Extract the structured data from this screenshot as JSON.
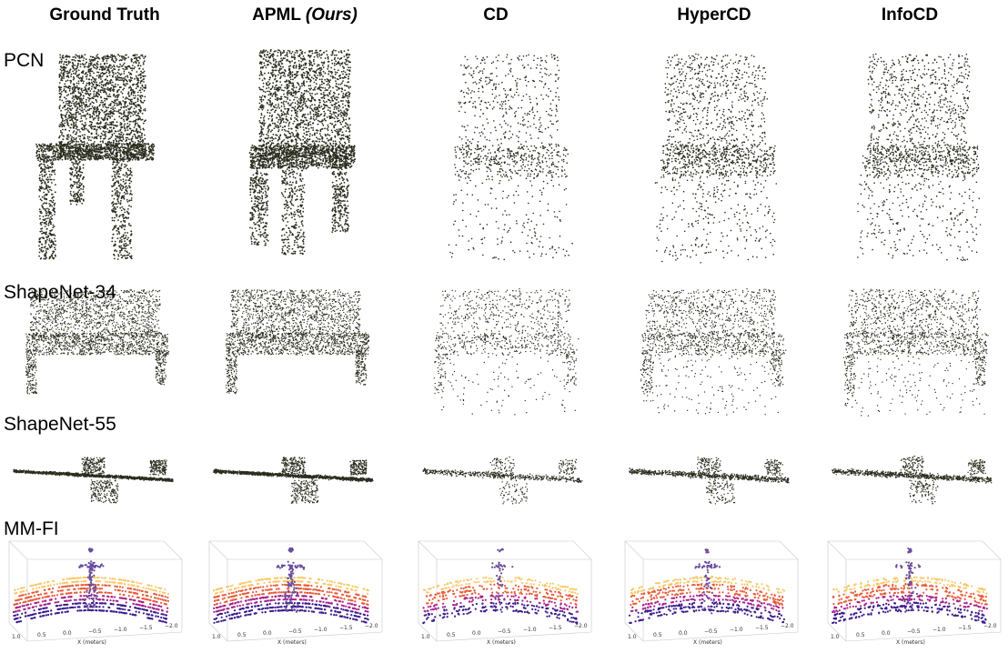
{
  "columns": [
    {
      "id": "gt",
      "label": "Ground Truth",
      "suffix": ""
    },
    {
      "id": "apml",
      "label": "APML ",
      "suffix": "(Ours)"
    },
    {
      "id": "cd",
      "label": "CD",
      "suffix": ""
    },
    {
      "id": "hypercd",
      "label": "HyperCD",
      "suffix": ""
    },
    {
      "id": "infocd",
      "label": "InfoCD",
      "suffix": ""
    }
  ],
  "rows": [
    {
      "id": "pcn",
      "label": "PCN",
      "shape": "chair"
    },
    {
      "id": "shapenet34",
      "label": "ShapeNet-34",
      "shape": "sofa"
    },
    {
      "id": "shapenet55",
      "label": "ShapeNet-55",
      "shape": "airplane"
    },
    {
      "id": "mmfi",
      "label": "MM-FI",
      "shape": "human-scene"
    }
  ],
  "mmfi_axis": {
    "x_ticks": [
      "1.0",
      "0.5",
      "0.0",
      "−0.5",
      "−1.0",
      "−1.5",
      "−2.0"
    ],
    "x_label": "X (meters)"
  },
  "colors": {
    "point": "#2b2d1e",
    "scene_gradient": [
      "#3b1c8c",
      "#a6238a",
      "#e85d3a",
      "#f8c96a"
    ],
    "human": "#6a4c9c"
  },
  "styles": {
    "gt": {
      "density": "dense",
      "quality": "sharp"
    },
    "apml": {
      "density": "dense",
      "quality": "smooth"
    },
    "cd": {
      "density": "sparse",
      "quality": "noisy"
    },
    "hypercd": {
      "density": "medium",
      "quality": "noisy"
    },
    "infocd": {
      "density": "medium",
      "quality": "noisy"
    }
  }
}
